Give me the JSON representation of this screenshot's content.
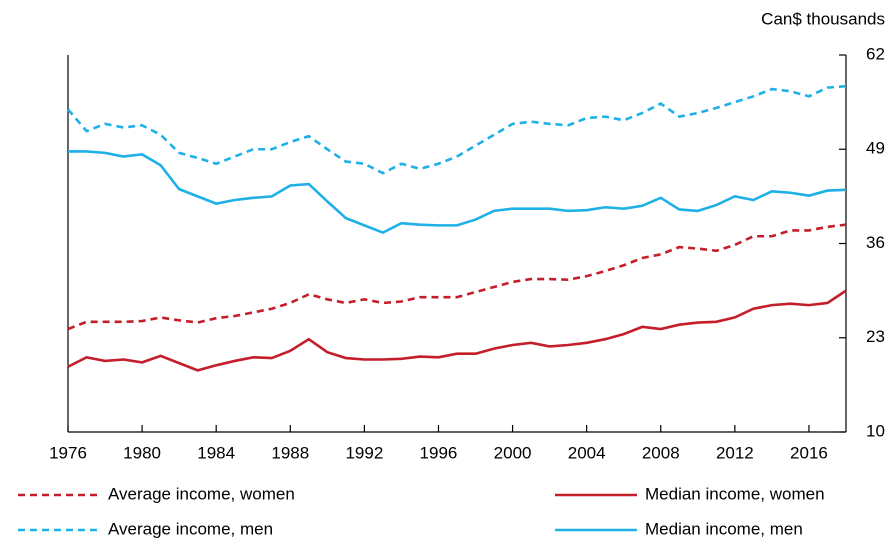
{
  "chart_data": {
    "type": "line",
    "y_label": "Can$ thousands",
    "x": [
      1976,
      1977,
      1978,
      1979,
      1980,
      1981,
      1982,
      1983,
      1984,
      1985,
      1986,
      1987,
      1988,
      1989,
      1990,
      1991,
      1992,
      1993,
      1994,
      1995,
      1996,
      1997,
      1998,
      1999,
      2000,
      2001,
      2002,
      2003,
      2004,
      2005,
      2006,
      2007,
      2008,
      2009,
      2010,
      2011,
      2012,
      2013,
      2014,
      2015,
      2016,
      2017,
      2018
    ],
    "xlim": [
      1976,
      2018
    ],
    "xticks": [
      1976,
      1980,
      1984,
      1988,
      1992,
      1996,
      2000,
      2004,
      2008,
      2012,
      2016
    ],
    "ylim": [
      10,
      62
    ],
    "yticks": [
      10,
      23,
      36,
      49,
      62
    ],
    "series": [
      {
        "name": "Average income, women",
        "color": "#c41e2a",
        "dashed": true,
        "values": [
          24.2,
          25.2,
          25.2,
          25.2,
          25.3,
          25.8,
          25.4,
          25.1,
          25.7,
          26,
          26.5,
          27,
          27.8,
          29,
          28.3,
          27.8,
          28.3,
          27.8,
          28,
          28.6,
          28.6,
          28.6,
          29.3,
          30,
          30.7,
          31.1,
          31.1,
          31,
          31.5,
          32.2,
          33,
          34,
          34.5,
          35.5,
          35.3,
          35,
          35.8,
          37,
          37,
          37.8,
          37.8,
          38.3,
          38.6
        ]
      },
      {
        "name": "Median income, women",
        "color": "#c41e2a",
        "dashed": false,
        "values": [
          19,
          20.3,
          19.8,
          20,
          19.6,
          20.5,
          19.5,
          18.5,
          19.2,
          19.8,
          20.3,
          20.2,
          21.2,
          22.8,
          21,
          20.2,
          20,
          20,
          20.1,
          20.4,
          20.3,
          20.8,
          20.8,
          21.5,
          22,
          22.3,
          21.8,
          22,
          22.3,
          22.8,
          23.5,
          24.5,
          24.2,
          24.8,
          25.1,
          25.2,
          25.8,
          27,
          27.5,
          27.7,
          27.5,
          27.8,
          29.5
        ]
      },
      {
        "name": "Average income, men",
        "color": "#1eb0e6",
        "dashed": true,
        "values": [
          54.5,
          51.5,
          52.5,
          52,
          52.3,
          51,
          48.5,
          47.8,
          47,
          48,
          49,
          49,
          50,
          50.8,
          49,
          47.3,
          47,
          45.7,
          47,
          46.3,
          47,
          48,
          49.5,
          51,
          52.5,
          52.8,
          52.5,
          52.3,
          53.3,
          53.5,
          53,
          54,
          55.3,
          53.5,
          54,
          54.7,
          55.5,
          56.3,
          57.3,
          57,
          56.3,
          57.5,
          57.7
        ]
      },
      {
        "name": "Median income, men",
        "color": "#1eb0e6",
        "dashed": false,
        "values": [
          48.7,
          48.7,
          48.5,
          48,
          48.3,
          46.8,
          43.5,
          42.5,
          41.5,
          42,
          42.3,
          42.5,
          44,
          44.2,
          41.8,
          39.5,
          38.5,
          37.5,
          38.8,
          38.6,
          38.5,
          38.5,
          39.3,
          40.5,
          40.8,
          40.8,
          40.8,
          40.5,
          40.6,
          41,
          40.8,
          41.2,
          42.3,
          40.7,
          40.5,
          41.3,
          42.5,
          42,
          43.2,
          43,
          42.6,
          43.3,
          43.4
        ]
      }
    ]
  }
}
